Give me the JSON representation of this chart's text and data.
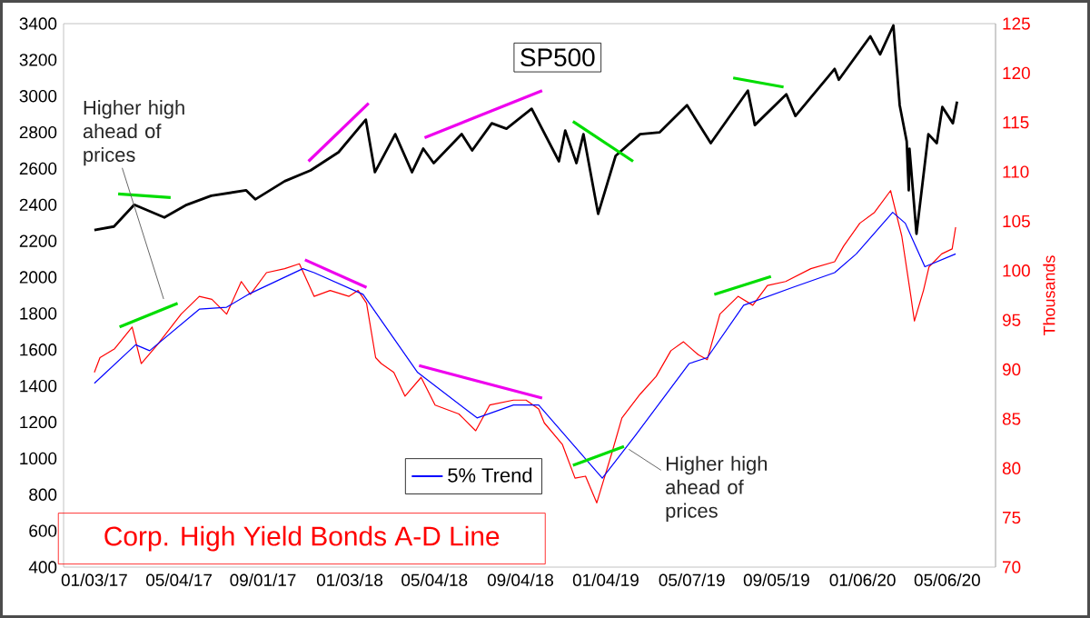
{
  "chart_data": {
    "type": "line",
    "title": "Corp. High Yield Bonds A-D Line",
    "y2label": "Thousands",
    "annotations": [
      {
        "text": "Higher high ahead of prices",
        "x": "2017-04-12",
        "y": 1880
      },
      {
        "text": "Higher high ahead of prices",
        "x": "2019-02-06",
        "y": 1050
      }
    ],
    "xlim": [
      "2016-11-20",
      "2020-07-14"
    ],
    "xticks": [
      {
        "value": "2017-01-03",
        "label": "01/03/17"
      },
      {
        "value": "2017-05-04",
        "label": "05/04/17"
      },
      {
        "value": "2017-09-01",
        "label": "09/01/17"
      },
      {
        "value": "2018-01-03",
        "label": "01/03/18"
      },
      {
        "value": "2018-05-04",
        "label": "05/04/18"
      },
      {
        "value": "2018-09-04",
        "label": "09/04/18"
      },
      {
        "value": "2019-01-04",
        "label": "01/04/19"
      },
      {
        "value": "2019-05-07",
        "label": "05/07/19"
      },
      {
        "value": "2019-09-05",
        "label": "09/05/19"
      },
      {
        "value": "2020-01-06",
        "label": "01/06/20"
      },
      {
        "value": "2020-05-06",
        "label": "05/06/20"
      }
    ],
    "ylim": [
      400,
      3400
    ],
    "yticks": [
      400,
      600,
      800,
      1000,
      1200,
      1400,
      1600,
      1800,
      2000,
      2200,
      2400,
      2600,
      2800,
      3000,
      3200,
      3400
    ],
    "y2lim": [
      70,
      125
    ],
    "y2ticks": [
      70,
      75,
      80,
      85,
      90,
      95,
      100,
      105,
      110,
      115,
      120,
      125
    ],
    "legend": "bottom",
    "marker": "none",
    "series": [
      {
        "name": "SP500",
        "color": "#000000",
        "x": [
          "2017-01-03",
          "2017-01-31",
          "2017-03-01",
          "2017-04-13",
          "2017-05-15",
          "2017-06-19",
          "2017-08-08",
          "2017-08-21",
          "2017-10-02",
          "2017-11-08",
          "2017-12-18",
          "2018-01-26",
          "2018-02-08",
          "2018-03-09",
          "2018-04-02",
          "2018-04-18",
          "2018-05-03",
          "2018-06-12",
          "2018-06-27",
          "2018-07-25",
          "2018-08-15",
          "2018-09-20",
          "2018-10-29",
          "2018-11-07",
          "2018-11-23",
          "2018-12-03",
          "2018-12-24",
          "2019-01-18",
          "2019-02-22",
          "2019-03-22",
          "2019-04-30",
          "2019-06-03",
          "2019-07-26",
          "2019-08-05",
          "2019-09-19",
          "2019-10-02",
          "2019-11-27",
          "2019-12-03",
          "2020-01-17",
          "2020-01-31",
          "2020-02-19",
          "2020-02-28",
          "2020-03-09",
          "2020-03-12",
          "2020-03-13",
          "2020-03-23",
          "2020-04-09",
          "2020-04-21",
          "2020-04-29",
          "2020-05-14",
          "2020-05-20"
        ],
        "values": [
          2260,
          2280,
          2400,
          2330,
          2400,
          2450,
          2480,
          2430,
          2530,
          2590,
          2690,
          2870,
          2580,
          2790,
          2580,
          2710,
          2630,
          2790,
          2700,
          2850,
          2820,
          2930,
          2640,
          2810,
          2630,
          2790,
          2350,
          2670,
          2790,
          2800,
          2950,
          2740,
          3030,
          2840,
          3010,
          2890,
          3150,
          3090,
          3330,
          3230,
          3390,
          2950,
          2750,
          2480,
          2710,
          2240,
          2790,
          2740,
          2940,
          2850,
          2970
        ]
      },
      {
        "color": "#ff0000",
        "axis": "y2",
        "x": [
          "2017-01-03",
          "2017-01-11",
          "2017-02-01",
          "2017-02-26",
          "2017-03-11",
          "2017-04-03",
          "2017-05-07",
          "2017-06-02",
          "2017-06-20",
          "2017-07-11",
          "2017-08-01",
          "2017-08-14",
          "2017-09-06",
          "2017-10-02",
          "2017-10-23",
          "2017-11-13",
          "2017-12-06",
          "2018-01-02",
          "2018-01-15",
          "2018-01-27",
          "2018-02-09",
          "2018-02-17",
          "2018-03-07",
          "2018-03-23",
          "2018-04-15",
          "2018-05-05",
          "2018-06-08",
          "2018-07-02",
          "2018-07-22",
          "2018-08-25",
          "2018-09-12",
          "2018-09-30",
          "2018-10-08",
          "2018-11-03",
          "2018-11-21",
          "2018-12-06",
          "2018-12-22",
          "2019-01-12",
          "2019-01-27",
          "2019-02-22",
          "2019-03-17",
          "2019-04-07",
          "2019-04-25",
          "2019-05-16",
          "2019-05-29",
          "2019-06-16",
          "2019-07-12",
          "2019-08-02",
          "2019-08-23",
          "2019-09-18",
          "2019-10-24",
          "2019-11-27",
          "2019-12-10",
          "2020-01-02",
          "2020-01-23",
          "2020-02-15",
          "2020-03-02",
          "2020-03-15",
          "2020-03-20",
          "2020-04-02",
          "2020-04-10",
          "2020-04-28",
          "2020-05-13",
          "2020-05-18"
        ],
        "values": [
          89.7,
          91.2,
          92.1,
          94.3,
          90.6,
          92.5,
          95.6,
          97.4,
          97.1,
          95.6,
          98.9,
          97.6,
          99.8,
          100.2,
          100.7,
          97.4,
          98.0,
          97.4,
          98.0,
          96.7,
          91.2,
          90.6,
          89.7,
          87.3,
          89.2,
          86.4,
          85.5,
          83.8,
          86.4,
          86.9,
          86.9,
          86.0,
          84.6,
          82.4,
          79.0,
          79.2,
          76.5,
          81.4,
          85.1,
          87.5,
          89.3,
          91.9,
          92.8,
          91.5,
          91.0,
          95.6,
          97.4,
          96.5,
          98.5,
          98.9,
          100.2,
          100.9,
          102.5,
          104.8,
          105.9,
          108.1,
          103.5,
          97.4,
          94.9,
          98.0,
          100.4,
          101.7,
          102.2,
          104.4
        ]
      },
      {
        "name": "5% Trend",
        "color": "#0000ff",
        "axis": "y2",
        "x": [
          "2017-01-03",
          "2017-03-03",
          "2017-03-23",
          "2017-06-02",
          "2017-07-11",
          "2017-08-11",
          "2017-10-28",
          "2017-11-13",
          "2018-01-22",
          "2018-04-10",
          "2018-07-04",
          "2018-08-25",
          "2018-09-30",
          "2018-12-30",
          "2019-02-15",
          "2019-05-03",
          "2019-05-29",
          "2019-07-20",
          "2019-09-28",
          "2019-11-27",
          "2019-12-28",
          "2020-02-18",
          "2020-03-07",
          "2020-04-04",
          "2020-05-18"
        ],
        "values": [
          88.6,
          92.5,
          91.9,
          96.1,
          96.3,
          97.6,
          100.2,
          99.8,
          97.6,
          89.7,
          85.1,
          86.4,
          86.4,
          79.0,
          83.3,
          90.6,
          91.2,
          96.5,
          98.3,
          99.8,
          101.7,
          105.9,
          104.8,
          100.4,
          101.7
        ]
      },
      {
        "color": "#00dd00",
        "x": [
          "2017-02-06",
          "2017-04-22"
        ],
        "values": [
          2460,
          2440
        ]
      },
      {
        "color": "#ee00ee",
        "x": [
          "2017-11-05",
          "2018-01-30"
        ],
        "values": [
          2640,
          2960
        ]
      },
      {
        "color": "#ee00ee",
        "x": [
          "2018-04-20",
          "2018-10-05"
        ],
        "values": [
          2770,
          3030
        ]
      },
      {
        "color": "#00dd00",
        "x": [
          "2018-11-18",
          "2019-02-12"
        ],
        "values": [
          2860,
          2640
        ]
      },
      {
        "color": "#00dd00",
        "x": [
          "2019-07-05",
          "2019-09-15"
        ],
        "values": [
          3100,
          3050
        ]
      },
      {
        "color": "#00dd00",
        "axis": "y2",
        "x": [
          "2017-02-08",
          "2017-05-02"
        ],
        "values": [
          94.3,
          96.7
        ]
      },
      {
        "color": "#ee00ee",
        "axis": "y2",
        "x": [
          "2017-10-31",
          "2018-01-27"
        ],
        "values": [
          101.1,
          98.3
        ]
      },
      {
        "color": "#ee00ee",
        "axis": "y2",
        "x": [
          "2018-04-12",
          "2018-10-05"
        ],
        "values": [
          90.4,
          87.1
        ]
      },
      {
        "color": "#00dd00",
        "axis": "y2",
        "x": [
          "2018-11-18",
          "2019-01-30"
        ],
        "values": [
          80.3,
          82.2
        ]
      },
      {
        "color": "#00dd00",
        "axis": "y2",
        "x": [
          "2019-06-08",
          "2019-08-28"
        ],
        "values": [
          97.6,
          99.4
        ]
      }
    ]
  }
}
